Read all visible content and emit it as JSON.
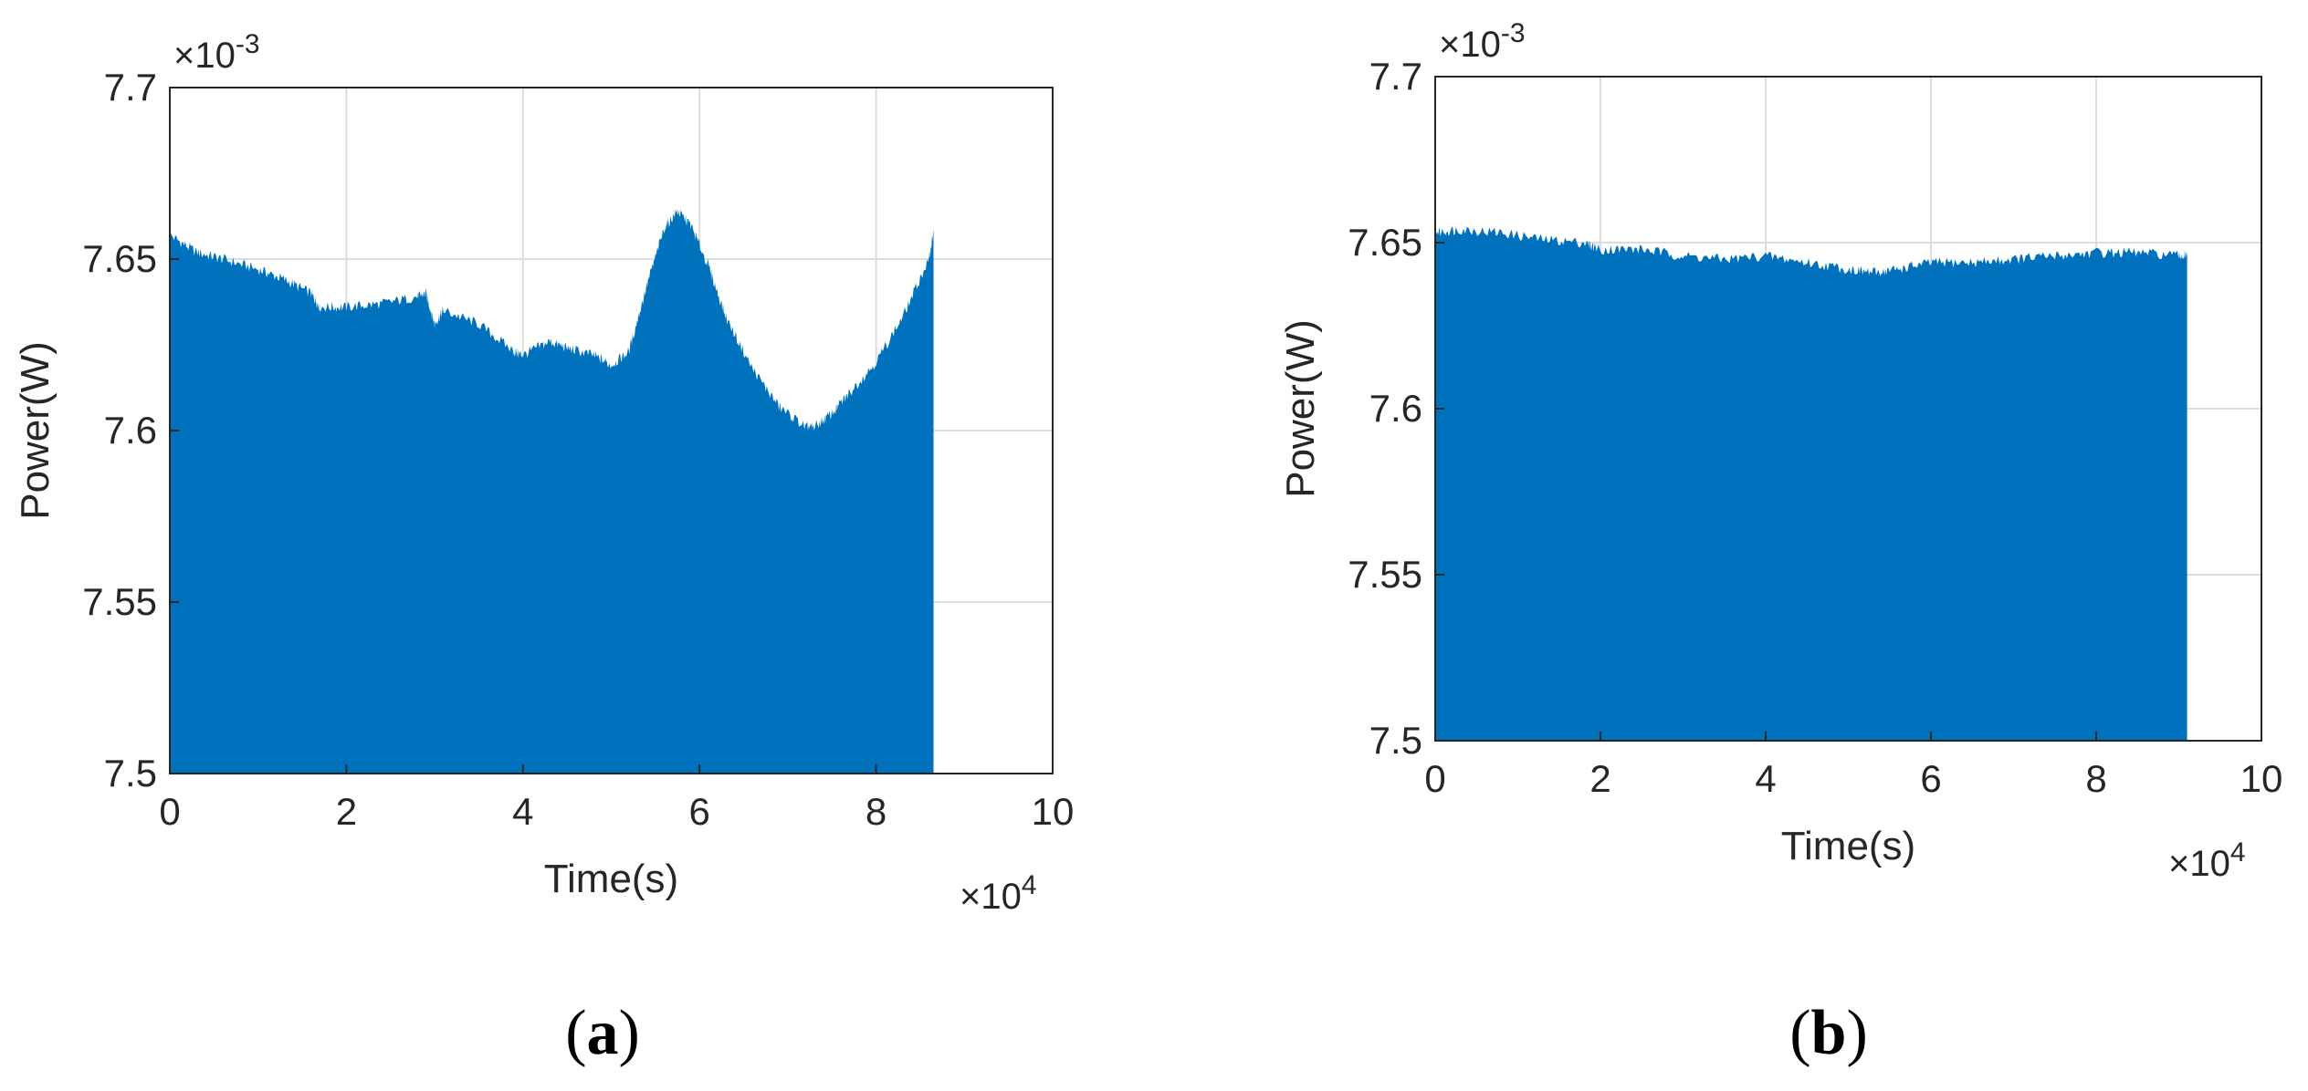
{
  "colors": {
    "fill": "#0072bd",
    "grid": "#dcdcdc",
    "axis": "#262626"
  },
  "chart_data": [
    {
      "type": "area",
      "panel_label": "a",
      "xlabel": "Time(s)",
      "ylabel": "Power(W)",
      "x_multiplier_label": "×10",
      "x_multiplier_exp": "4",
      "y_multiplier_label": "×10",
      "y_multiplier_exp": "-3",
      "xlim": [
        0,
        10
      ],
      "ylim": [
        7.5,
        7.7
      ],
      "xticks": [
        "0",
        "2",
        "4",
        "6",
        "8",
        "10"
      ],
      "yticks": [
        "7.5",
        "7.55",
        "7.6",
        "7.65",
        "7.7"
      ],
      "grid": true,
      "x": [
        0,
        0.3,
        0.6,
        1.0,
        1.3,
        1.6,
        1.7,
        2.0,
        2.4,
        2.8,
        2.9,
        3.0,
        3.1,
        3.5,
        3.9,
        4.0,
        4.3,
        4.5,
        4.8,
        5.0,
        5.2,
        5.4,
        5.6,
        5.75,
        5.9,
        6.1,
        6.3,
        6.6,
        6.9,
        7.2,
        7.3,
        7.5,
        7.7,
        8.0,
        8.3,
        8.6,
        8.65
      ],
      "y": [
        7.657,
        7.652,
        7.65,
        7.647,
        7.644,
        7.64,
        7.636,
        7.636,
        7.637,
        7.639,
        7.64,
        7.631,
        7.635,
        7.631,
        7.623,
        7.622,
        7.626,
        7.624,
        7.622,
        7.619,
        7.623,
        7.642,
        7.659,
        7.664,
        7.66,
        7.648,
        7.633,
        7.618,
        7.607,
        7.601,
        7.601,
        7.605,
        7.611,
        7.62,
        7.633,
        7.65,
        7.658
      ]
    },
    {
      "type": "area",
      "panel_label": "b",
      "xlabel": "Time(s)",
      "ylabel": "Power(W)",
      "x_multiplier_label": "×10",
      "x_multiplier_exp": "4",
      "y_multiplier_label": "×10",
      "y_multiplier_exp": "-3",
      "xlim": [
        0,
        10
      ],
      "ylim": [
        7.5,
        7.7
      ],
      "xticks": [
        "0",
        "2",
        "4",
        "6",
        "8",
        "10"
      ],
      "yticks": [
        "7.5",
        "7.55",
        "7.6",
        "7.65",
        "7.7"
      ],
      "grid": true,
      "x": [
        0,
        0.3,
        0.8,
        1.3,
        1.8,
        2.0,
        2.5,
        3.0,
        3.5,
        4.0,
        4.5,
        5.0,
        5.3,
        5.6,
        6.0,
        6.5,
        7.0,
        7.5,
        8.0,
        8.5,
        9.0,
        9.1
      ],
      "y": [
        7.653,
        7.654,
        7.653,
        7.651,
        7.65,
        7.648,
        7.648,
        7.646,
        7.645,
        7.646,
        7.644,
        7.642,
        7.641,
        7.642,
        7.644,
        7.644,
        7.645,
        7.646,
        7.647,
        7.647,
        7.646,
        7.646
      ]
    }
  ]
}
